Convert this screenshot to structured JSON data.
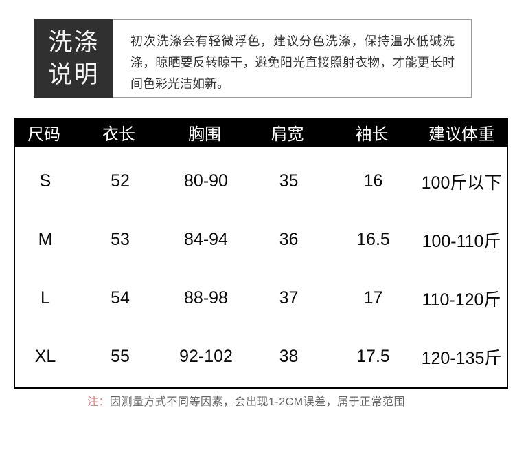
{
  "wash": {
    "label_lines": [
      "洗涤",
      "说明"
    ],
    "body": "初次洗涤会有轻微浮色，建议分色洗涤，保持温水低碱洗涤，晾晒要反转晾干，避免阳光直接照射衣物，才能更长时间色彩光洁如新。"
  },
  "size_chart": {
    "headers": [
      "尺码",
      "衣长",
      "胸围",
      "肩宽",
      "袖长",
      "建议体重"
    ],
    "rows": [
      [
        "S",
        "52",
        "80-90",
        "35",
        "16",
        "100斤以下"
      ],
      [
        "M",
        "53",
        "84-94",
        "36",
        "16.5",
        "100-110斤"
      ],
      [
        "L",
        "54",
        "88-98",
        "37",
        "17",
        "110-120斤"
      ],
      [
        "XL",
        "55",
        "92-102",
        "38",
        "17.5",
        "120-135斤"
      ]
    ]
  },
  "note": {
    "prefix": "注：",
    "text": "因测量方式不同等因素，会出现1-2CM误差，属于正常范围"
  },
  "colors": {
    "wash_label_bg": "#303030",
    "wash_border": "#9a9a9a",
    "table_header_bg": "#000000",
    "note_prefix_red": "#f07878",
    "note_text_gray": "#666666"
  }
}
